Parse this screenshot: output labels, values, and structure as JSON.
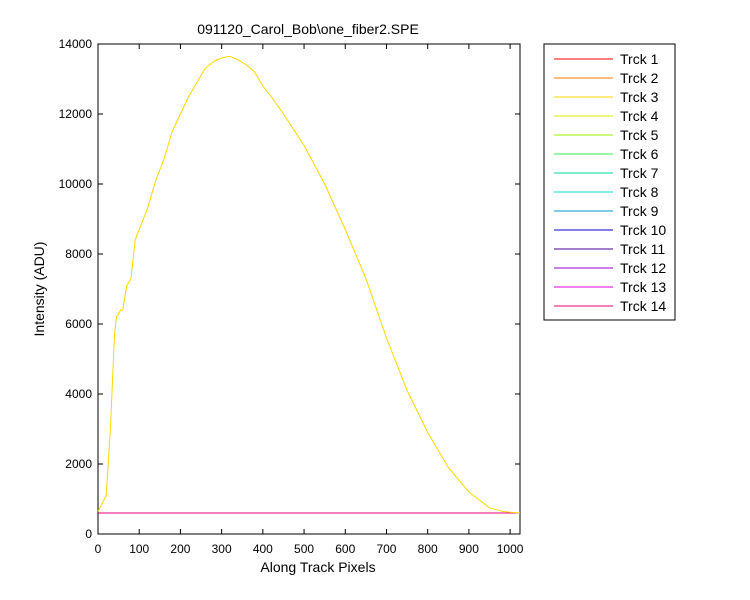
{
  "chart_data": {
    "type": "line",
    "title": "091120_Carol_Bob\\one_fiber2.SPE",
    "xlabel": "Along Track Pixels",
    "ylabel": "Intensity (ADU)",
    "xlim": [
      0,
      1024
    ],
    "ylim": [
      0,
      14000
    ],
    "xticks": [
      0,
      100,
      200,
      300,
      400,
      500,
      600,
      700,
      800,
      900,
      1000
    ],
    "yticks": [
      0,
      2000,
      4000,
      6000,
      8000,
      10000,
      12000,
      14000
    ],
    "grid": false,
    "legend_position": "outside-right",
    "series": [
      {
        "name": "Trck 1",
        "color": "#ff0000",
        "x": [
          0,
          1024
        ],
        "y": [
          600,
          600
        ]
      },
      {
        "name": "Trck 2",
        "color": "#ff7700",
        "x": [
          0,
          1024
        ],
        "y": [
          600,
          600
        ]
      },
      {
        "name": "Trck 3",
        "color": "#ffd700",
        "x": [
          0,
          20,
          30,
          40,
          45,
          50,
          55,
          60,
          70,
          80,
          90,
          100,
          120,
          140,
          160,
          180,
          200,
          220,
          240,
          260,
          280,
          300,
          320,
          340,
          360,
          380,
          400,
          420,
          450,
          500,
          550,
          600,
          650,
          700,
          750,
          800,
          850,
          900,
          950,
          980,
          1000,
          1024
        ],
        "y": [
          650,
          1100,
          3000,
          5700,
          6200,
          6300,
          6400,
          6400,
          7100,
          7300,
          8400,
          8700,
          9300,
          10100,
          10700,
          11500,
          12000,
          12500,
          12900,
          13300,
          13500,
          13600,
          13650,
          13550,
          13400,
          13200,
          12800,
          12500,
          12000,
          11100,
          10000,
          8700,
          7300,
          5600,
          4100,
          2900,
          1900,
          1200,
          750,
          650,
          620,
          600
        ]
      },
      {
        "name": "Trck 4",
        "color": "#d7f000",
        "x": [
          0,
          1024
        ],
        "y": [
          600,
          600
        ]
      },
      {
        "name": "Trck 5",
        "color": "#99f000",
        "x": [
          0,
          1024
        ],
        "y": [
          600,
          600
        ]
      },
      {
        "name": "Trck 6",
        "color": "#33ee55",
        "x": [
          0,
          1024
        ],
        "y": [
          600,
          600
        ]
      },
      {
        "name": "Trck 7",
        "color": "#00dd99",
        "x": [
          0,
          1024
        ],
        "y": [
          600,
          600
        ]
      },
      {
        "name": "Trck 8",
        "color": "#00e0d0",
        "x": [
          0,
          1024
        ],
        "y": [
          600,
          600
        ]
      },
      {
        "name": "Trck 9",
        "color": "#0099cc",
        "x": [
          0,
          1024
        ],
        "y": [
          600,
          600
        ]
      },
      {
        "name": "Trck 10",
        "color": "#0000cc",
        "x": [
          0,
          1024
        ],
        "y": [
          600,
          600
        ]
      },
      {
        "name": "Trck 11",
        "color": "#440099",
        "x": [
          0,
          1024
        ],
        "y": [
          600,
          600
        ]
      },
      {
        "name": "Trck 12",
        "color": "#9900cc",
        "x": [
          0,
          1024
        ],
        "y": [
          600,
          600
        ]
      },
      {
        "name": "Trck 13",
        "color": "#dd00dd",
        "x": [
          0,
          1024
        ],
        "y": [
          600,
          600
        ]
      },
      {
        "name": "Trck 14",
        "color": "#ee0077",
        "x": [
          0,
          1024
        ],
        "y": [
          600,
          600
        ]
      }
    ]
  }
}
